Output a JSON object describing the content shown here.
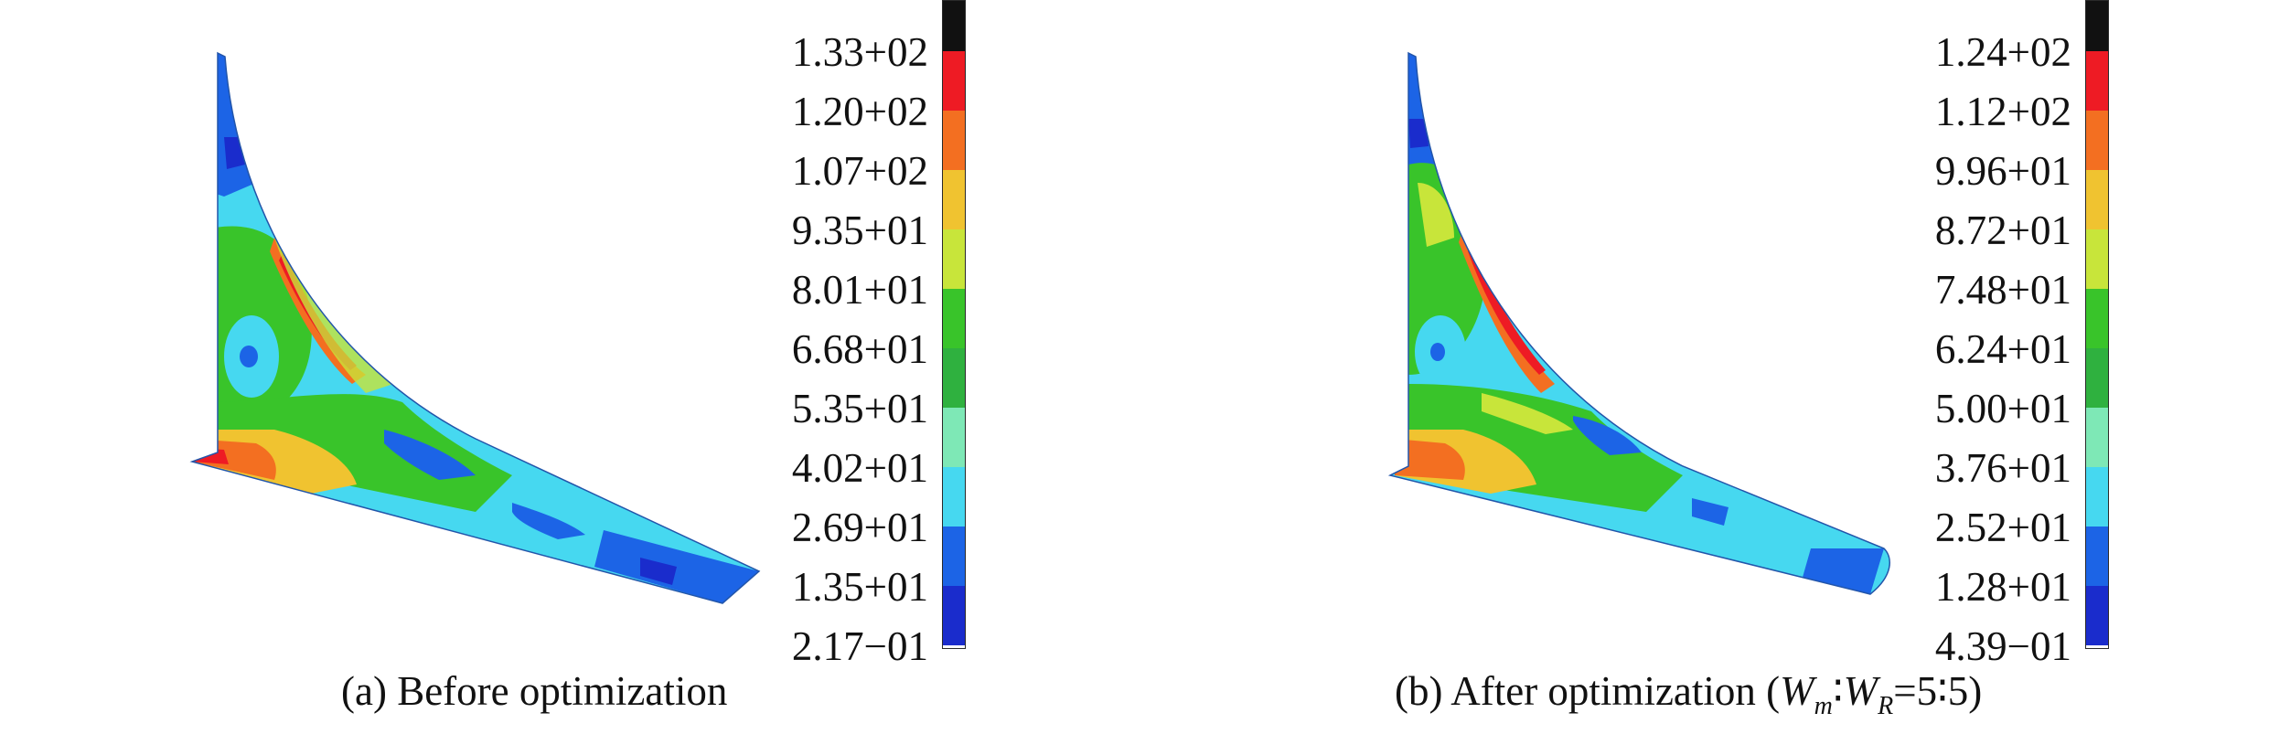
{
  "panels": [
    {
      "caption": "(a) Before optimization",
      "legend_labels": [
        "1.33+02",
        "1.20+02",
        "1.07+02",
        "9.35+01",
        "8.01+01",
        "6.68+01",
        "5.35+01",
        "4.02+01",
        "2.69+01",
        "1.35+01",
        "2.17−01"
      ]
    },
    {
      "caption_main": "(b) After optimization (",
      "caption_w1": "W",
      "caption_sub1": "m",
      "caption_sep": "∶",
      "caption_w2": "W",
      "caption_sub2": "R",
      "caption_tail": "=5∶5)",
      "legend_labels": [
        "1.24+02",
        "1.12+02",
        "9.96+01",
        "8.72+01",
        "7.48+01",
        "6.24+01",
        "5.00+01",
        "3.76+01",
        "2.52+01",
        "1.28+01",
        "4.39−01"
      ]
    }
  ],
  "colormap": [
    "#111111",
    "#ee1b24",
    "#f36f21",
    "#f0c330",
    "#c8e53a",
    "#39c42a",
    "#2fb13f",
    "#7ee8b6",
    "#46d8f0",
    "#1c64e6",
    "#1a2ccc"
  ]
}
